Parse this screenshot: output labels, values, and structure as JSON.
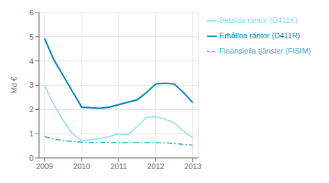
{
  "chart_data": {
    "type": "line",
    "ylabel": "Md €",
    "x": [
      2009.0,
      2009.25,
      2009.5,
      2009.75,
      2010.0,
      2010.25,
      2010.5,
      2010.75,
      2011.0,
      2011.25,
      2011.5,
      2011.75,
      2012.0,
      2012.25,
      2012.5,
      2012.75,
      2013.0
    ],
    "series": [
      {
        "name": "Erhållna räntor (D411R)",
        "color": "#0088bb",
        "line_style": "solid",
        "values": [
          4.93,
          4.05,
          3.4,
          2.75,
          2.1,
          2.07,
          2.05,
          2.1,
          2.2,
          2.3,
          2.4,
          2.7,
          3.05,
          3.08,
          3.05,
          2.7,
          2.28
        ]
      },
      {
        "name": "Betalda räntor (D411K)",
        "color": "#88ddee",
        "line_style": "solid",
        "values": [
          2.98,
          2.2,
          1.55,
          1.0,
          0.72,
          0.75,
          0.8,
          0.88,
          1.0,
          0.95,
          1.3,
          1.68,
          1.7,
          1.6,
          1.45,
          1.1,
          0.82
        ]
      },
      {
        "name": "Finansiella tjänster (FISIM)",
        "color": "#33aacc",
        "line_style": "dashdot",
        "values": [
          0.88,
          0.78,
          0.72,
          0.68,
          0.65,
          0.64,
          0.64,
          0.64,
          0.64,
          0.64,
          0.64,
          0.63,
          0.63,
          0.62,
          0.6,
          0.56,
          0.53
        ]
      }
    ],
    "xlim": [
      2008.85,
      2013.15
    ],
    "xticks": [
      2009,
      2010,
      2011,
      2012,
      2013
    ],
    "ylim": [
      0,
      6
    ],
    "yticks": [
      0,
      1,
      2,
      3,
      4,
      5,
      6
    ],
    "grid": true,
    "legend": "right"
  }
}
